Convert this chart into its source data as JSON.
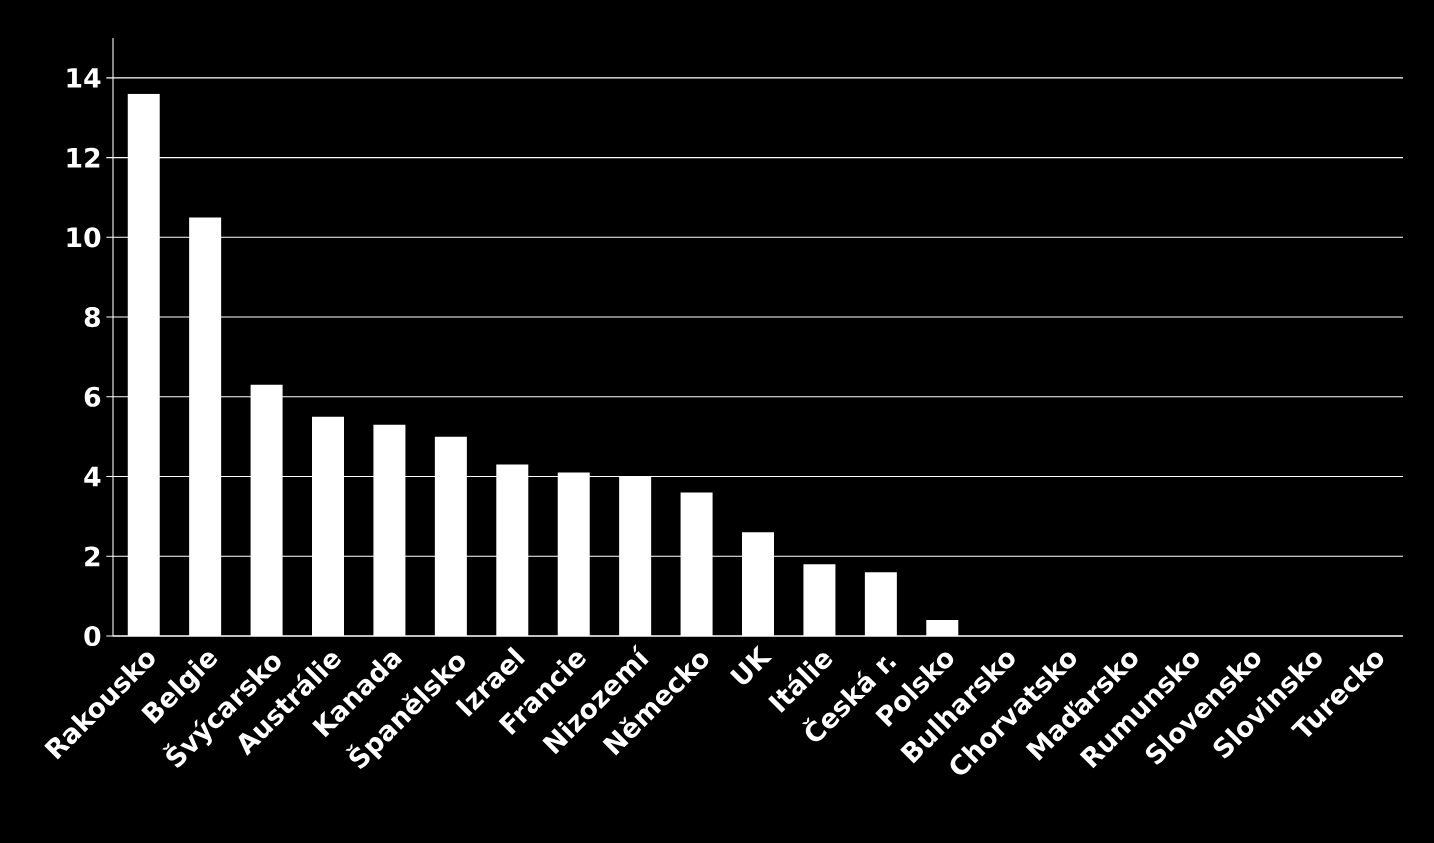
{
  "chart_data": {
    "type": "bar",
    "categories": [
      "Rakousko",
      "Belgie",
      "Švýcarsko",
      "Austrálie",
      "Kanada",
      "Španělsko",
      "Izrael",
      "Francie",
      "Nizozemí",
      "Německo",
      "UK",
      "Itálie",
      "Česká r.",
      "Polsko",
      "Bulharsko",
      "Chorvatsko",
      "Maďarsko",
      "Rumunsko",
      "Slovensko",
      "Slovinsko",
      "Turecko"
    ],
    "values": [
      13.6,
      10.5,
      6.3,
      5.5,
      5.3,
      5.0,
      4.3,
      4.1,
      4.0,
      3.6,
      2.6,
      1.8,
      1.6,
      0.4,
      0,
      0,
      0,
      0,
      0,
      0,
      0
    ],
    "color": "#ffffff",
    "ylim": [
      0,
      15
    ],
    "yticks": [
      0,
      2,
      4,
      6,
      8,
      10,
      12,
      14
    ],
    "grid": "y"
  }
}
